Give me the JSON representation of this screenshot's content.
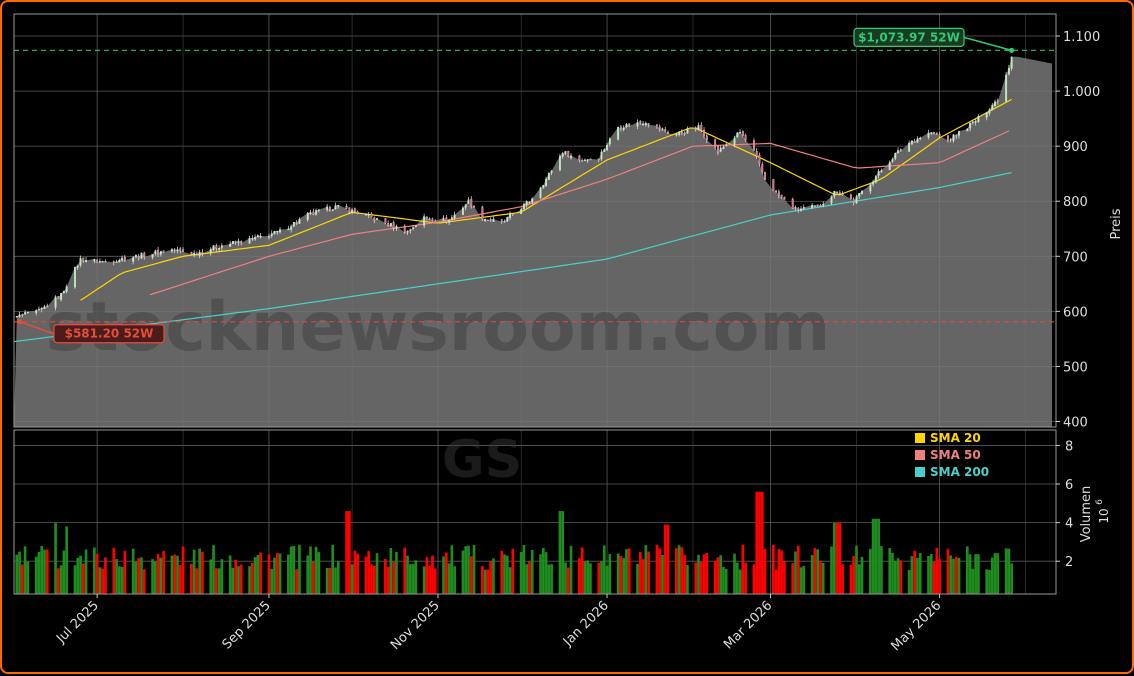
{
  "chart_data": [
    {
      "type": "candlestick",
      "ticker": "GS",
      "watermark": "stocknewsroom.com",
      "ylabel": "Preis",
      "ylim": [
        390,
        1140
      ],
      "yticks": [
        400,
        500,
        600,
        700,
        800,
        900,
        1000,
        1100
      ],
      "ytick_labels": [
        "400",
        "500",
        "600",
        "700",
        "800",
        "900",
        "1.000",
        "1.100"
      ],
      "xlim": [
        "2025-06-01",
        "2026-06-12"
      ],
      "xticks": [
        "2025-07-01",
        "2025-09-01",
        "2025-11-01",
        "2026-01-01",
        "2026-03-01",
        "2026-05-01"
      ],
      "xtick_labels": [
        "Jul 2025",
        "Sep 2025",
        "Nov 2025",
        "Jan 2026",
        "Mar 2026",
        "May 2026"
      ],
      "grid": true,
      "annotations": [
        {
          "label": "$1,073.97 52W",
          "value": 1073.97,
          "date": "2026-05-27",
          "color": "#2ecc71"
        },
        {
          "label": "$581.20 52W",
          "value": 581.2,
          "date": "2025-06-03",
          "color": "#e74c3c"
        }
      ],
      "price_keyframes": [
        [
          "2025-06-02",
          590
        ],
        [
          "2025-06-10",
          600
        ],
        [
          "2025-06-18",
          630
        ],
        [
          "2025-06-25",
          695
        ],
        [
          "2025-07-03",
          690
        ],
        [
          "2025-07-15",
          700
        ],
        [
          "2025-07-28",
          712
        ],
        [
          "2025-08-05",
          705
        ],
        [
          "2025-08-15",
          720
        ],
        [
          "2025-08-25",
          730
        ],
        [
          "2025-09-05",
          745
        ],
        [
          "2025-09-15",
          775
        ],
        [
          "2025-09-25",
          790
        ],
        [
          "2025-10-03",
          780
        ],
        [
          "2025-10-13",
          760
        ],
        [
          "2025-10-21",
          745
        ],
        [
          "2025-10-27",
          770
        ],
        [
          "2025-11-05",
          765
        ],
        [
          "2025-11-12",
          800
        ],
        [
          "2025-11-17",
          770
        ],
        [
          "2025-11-24",
          760
        ],
        [
          "2025-12-04",
          800
        ],
        [
          "2025-12-10",
          840
        ],
        [
          "2025-12-16",
          890
        ],
        [
          "2025-12-22",
          875
        ],
        [
          "2025-12-29",
          880
        ],
        [
          "2026-01-05",
          935
        ],
        [
          "2026-01-15",
          945
        ],
        [
          "2026-01-25",
          920
        ],
        [
          "2026-02-03",
          935
        ],
        [
          "2026-02-10",
          890
        ],
        [
          "2026-02-18",
          925
        ],
        [
          "2026-02-23",
          890
        ],
        [
          "2026-02-27",
          840
        ],
        [
          "2026-03-04",
          810
        ],
        [
          "2026-03-10",
          785
        ],
        [
          "2026-03-18",
          790
        ],
        [
          "2026-03-25",
          820
        ],
        [
          "2026-03-31",
          800
        ],
        [
          "2026-04-08",
          845
        ],
        [
          "2026-04-15",
          885
        ],
        [
          "2026-04-21",
          910
        ],
        [
          "2026-04-28",
          925
        ],
        [
          "2026-05-04",
          910
        ],
        [
          "2026-05-11",
          935
        ],
        [
          "2026-05-15",
          950
        ],
        [
          "2026-05-19",
          970
        ],
        [
          "2026-05-22",
          985
        ],
        [
          "2026-05-26",
          1045
        ],
        [
          "2026-05-27",
          1065
        ]
      ],
      "series": [
        {
          "name": "SMA 20",
          "color": "#ffd700",
          "points": [
            [
              "2025-06-25",
              620
            ],
            [
              "2025-07-10",
              670
            ],
            [
              "2025-08-01",
              700
            ],
            [
              "2025-09-01",
              720
            ],
            [
              "2025-10-01",
              780
            ],
            [
              "2025-11-01",
              760
            ],
            [
              "2025-12-01",
              780
            ],
            [
              "2026-01-01",
              875
            ],
            [
              "2026-02-01",
              935
            ],
            [
              "2026-03-01",
              870
            ],
            [
              "2026-03-25",
              810
            ],
            [
              "2026-04-10",
              840
            ],
            [
              "2026-05-01",
              915
            ],
            [
              "2026-05-27",
              985
            ]
          ]
        },
        {
          "name": "SMA 50",
          "color": "#f08080",
          "points": [
            [
              "2025-07-20",
              630
            ],
            [
              "2025-09-01",
              700
            ],
            [
              "2025-10-01",
              740
            ],
            [
              "2025-11-01",
              762
            ],
            [
              "2025-12-01",
              790
            ],
            [
              "2026-01-01",
              840
            ],
            [
              "2026-02-01",
              900
            ],
            [
              "2026-03-01",
              905
            ],
            [
              "2026-04-01",
              860
            ],
            [
              "2026-05-01",
              870
            ],
            [
              "2026-05-27",
              930
            ]
          ]
        },
        {
          "name": "SMA 200",
          "color": "#48d1cc",
          "points": [
            [
              "2025-06-01",
              545
            ],
            [
              "2025-09-01",
              605
            ],
            [
              "2025-11-01",
              650
            ],
            [
              "2026-01-01",
              695
            ],
            [
              "2026-03-01",
              775
            ],
            [
              "2026-05-01",
              825
            ],
            [
              "2026-05-27",
              852
            ]
          ]
        }
      ]
    },
    {
      "type": "bar",
      "ylabel": "Volumen",
      "yexp": "10",
      "yexp_power": "6",
      "ylim": [
        0.3,
        8.8
      ],
      "yticks": [
        2,
        4,
        6,
        8
      ],
      "ytick_labels": [
        "2",
        "4",
        "6",
        "8"
      ],
      "series_colors": {
        "up": "#1e8c1e",
        "down": "#ff0000"
      },
      "typical_volume": 2.2,
      "spikes": [
        [
          "2025-06-15",
          4.0
        ],
        [
          "2025-06-21",
          3.8
        ],
        [
          "2025-09-29",
          4.6
        ],
        [
          "2025-12-15",
          4.6
        ],
        [
          "2026-01-23",
          3.9
        ],
        [
          "2026-02-25",
          5.6
        ],
        [
          "2026-03-25",
          4.0
        ],
        [
          "2026-04-08",
          4.2
        ]
      ]
    }
  ],
  "legend": {
    "items": [
      {
        "label": "SMA 20",
        "color": "#ffd700"
      },
      {
        "label": "SMA 50",
        "color": "#f08080"
      },
      {
        "label": "SMA 200",
        "color": "#48d1cc"
      }
    ]
  }
}
